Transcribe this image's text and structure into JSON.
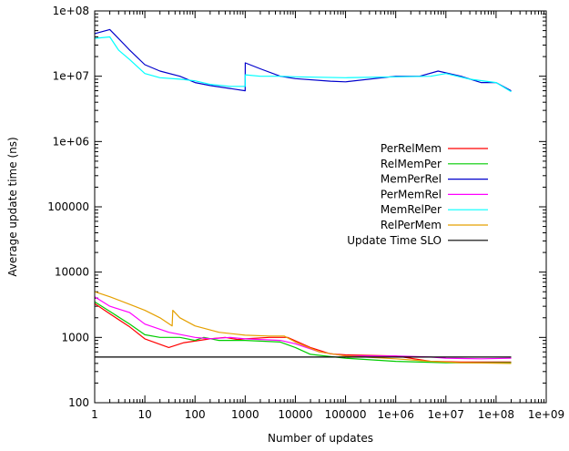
{
  "chart_data": {
    "type": "line",
    "title": "",
    "xlabel": "Number of updates",
    "ylabel": "Average update time (ns)",
    "xscale": "log",
    "yscale": "log",
    "xlim": [
      1,
      1000000000
    ],
    "ylim": [
      100,
      100000000
    ],
    "grid": false,
    "legend_position": "center-right",
    "x_tick_labels": [
      "1",
      "10",
      "100",
      "1000",
      "10000",
      "100000",
      "1e+06",
      "1e+07",
      "1e+08",
      "1e+09"
    ],
    "y_tick_labels": [
      "100",
      "1000",
      "10000",
      "100000",
      "1e+06",
      "1e+07",
      "1e+08"
    ],
    "series": [
      {
        "name": "PerRelMem",
        "color": "#ff0000",
        "points": [
          [
            1,
            3300
          ],
          [
            2,
            2300
          ],
          [
            5,
            1450
          ],
          [
            10,
            950
          ],
          [
            30,
            700
          ],
          [
            60,
            830
          ],
          [
            200,
            950
          ],
          [
            400,
            1000
          ],
          [
            700,
            930
          ],
          [
            1000,
            950
          ],
          [
            3000,
            1000
          ],
          [
            7000,
            1000
          ],
          [
            20000,
            700
          ],
          [
            50000,
            560
          ],
          [
            100000,
            540
          ],
          [
            1000000,
            520
          ],
          [
            5000000,
            430
          ],
          [
            20000000,
            420
          ],
          [
            100000000,
            420
          ],
          [
            200000000,
            420
          ]
        ]
      },
      {
        "name": "RelMemPer",
        "color": "#00cc00",
        "points": [
          [
            1,
            3500
          ],
          [
            2,
            2500
          ],
          [
            5,
            1600
          ],
          [
            10,
            1100
          ],
          [
            20,
            1000
          ],
          [
            50,
            1000
          ],
          [
            100,
            900
          ],
          [
            150,
            1000
          ],
          [
            300,
            900
          ],
          [
            1000,
            900
          ],
          [
            5000,
            850
          ],
          [
            10000,
            700
          ],
          [
            20000,
            550
          ],
          [
            100000,
            480
          ],
          [
            1000000,
            430
          ],
          [
            10000000,
            410
          ],
          [
            100000000,
            410
          ],
          [
            200000000,
            410
          ]
        ]
      },
      {
        "name": "MemPerRel",
        "color": "#0000cc",
        "points": [
          [
            1,
            45000000
          ],
          [
            2,
            52000000
          ],
          [
            4,
            30000000
          ],
          [
            5,
            25000000
          ],
          [
            10,
            15000000
          ],
          [
            20,
            12000000
          ],
          [
            50,
            10000000
          ],
          [
            100,
            8000000
          ],
          [
            200,
            7200000
          ],
          [
            500,
            6500000
          ],
          [
            1000,
            6000000
          ],
          [
            1001,
            16000000
          ],
          [
            2000,
            13000000
          ],
          [
            5000,
            10000000
          ],
          [
            10000,
            9200000
          ],
          [
            50000,
            8400000
          ],
          [
            100000,
            8200000
          ],
          [
            1000000,
            10000000
          ],
          [
            3000000,
            10000000
          ],
          [
            7000000,
            12000000
          ],
          [
            20000000,
            10000000
          ],
          [
            50000000,
            8000000
          ],
          [
            100000000,
            8000000
          ],
          [
            200000000,
            6000000
          ]
        ]
      },
      {
        "name": "PerMemRel",
        "color": "#ff00ff",
        "points": [
          [
            1,
            4200
          ],
          [
            2,
            3000
          ],
          [
            5,
            2400
          ],
          [
            10,
            1600
          ],
          [
            30,
            1200
          ],
          [
            100,
            1000
          ],
          [
            200,
            950
          ],
          [
            500,
            1000
          ],
          [
            1000,
            950
          ],
          [
            5000,
            900
          ],
          [
            10000,
            800
          ],
          [
            30000,
            600
          ],
          [
            100000,
            520
          ],
          [
            1000000,
            520
          ],
          [
            5000000,
            500
          ],
          [
            10000000,
            480
          ],
          [
            50000000,
            470
          ],
          [
            200000000,
            480
          ]
        ]
      },
      {
        "name": "MemRelPer",
        "color": "#00ffff",
        "points": [
          [
            1,
            38000000
          ],
          [
            2,
            40000000
          ],
          [
            3,
            25000000
          ],
          [
            5,
            18000000
          ],
          [
            10,
            11000000
          ],
          [
            20,
            9500000
          ],
          [
            50,
            9000000
          ],
          [
            100,
            8500000
          ],
          [
            200,
            7500000
          ],
          [
            500,
            7000000
          ],
          [
            1000,
            7000000
          ],
          [
            1001,
            10500000
          ],
          [
            2000,
            10000000
          ],
          [
            5000,
            10000000
          ],
          [
            10000,
            9800000
          ],
          [
            100000,
            9500000
          ],
          [
            1000000,
            9800000
          ],
          [
            5000000,
            10000000
          ],
          [
            10000000,
            11000000
          ],
          [
            30000000,
            9000000
          ],
          [
            100000000,
            8000000
          ],
          [
            200000000,
            5800000
          ]
        ]
      },
      {
        "name": "RelPerMem",
        "color": "#e5a000",
        "points": [
          [
            1,
            5000
          ],
          [
            2,
            4200
          ],
          [
            5,
            3200
          ],
          [
            10,
            2600
          ],
          [
            20,
            2000
          ],
          [
            35,
            1500
          ],
          [
            36,
            2600
          ],
          [
            50,
            2000
          ],
          [
            100,
            1500
          ],
          [
            300,
            1200
          ],
          [
            1000,
            1080
          ],
          [
            3000,
            1050
          ],
          [
            6000,
            1050
          ],
          [
            10000,
            850
          ],
          [
            30000,
            600
          ],
          [
            100000,
            520
          ],
          [
            1000000,
            470
          ],
          [
            5000000,
            430
          ],
          [
            20000000,
            410
          ],
          [
            200000000,
            400
          ]
        ]
      },
      {
        "name": "Update Time SLO",
        "color": "#000000",
        "points": [
          [
            1,
            500
          ],
          [
            200000000,
            500
          ]
        ]
      }
    ]
  }
}
